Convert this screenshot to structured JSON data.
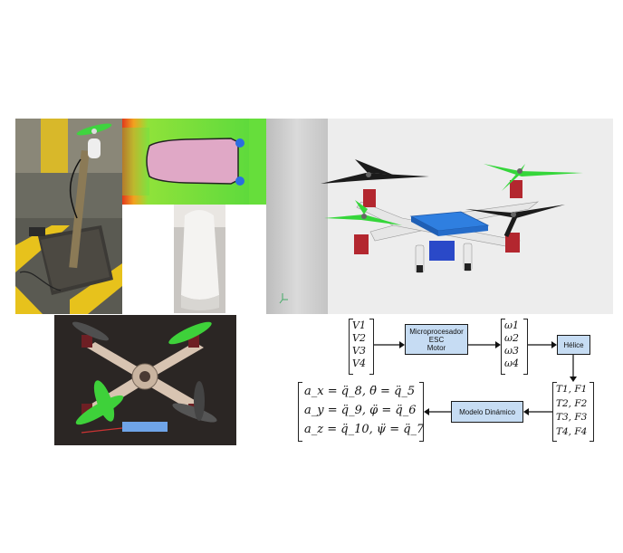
{
  "figure": {
    "panels": [
      {
        "id": "test-stand-photo",
        "description": "photo of motor on test stand"
      },
      {
        "id": "cfd-simulation",
        "description": "airfoil flow simulation"
      },
      {
        "id": "white-housing-photo",
        "description": "white motor housing"
      },
      {
        "id": "quadcopter-render",
        "description": "3D render of quadcopter"
      },
      {
        "id": "quadcopter-photo",
        "description": "assembled quadcopter"
      }
    ],
    "diagram": {
      "input_vector": [
        "V1",
        "V2",
        "V3",
        "V4"
      ],
      "block_micro": [
        "Microprocesador",
        "ESC",
        "Motor"
      ],
      "omega_vector": [
        "ω1",
        "ω2",
        "ω3",
        "ω4"
      ],
      "block_helice": "Hélice",
      "tf_vector": [
        "T1, F1",
        "T2, F2",
        "T3, F3",
        "T4, F4"
      ],
      "block_modelo": "Modelo Dinámico",
      "equations": [
        "a_x = q̈_8,   θ̈ = q̈_5",
        "a_y = q̈_9,   φ̈ = q̈_6",
        "a_z = q̈_10,   ψ̈ = q̈_7"
      ]
    },
    "colors": {
      "block_fill": "#c6dcf3",
      "propeller_green": "#35d63a",
      "propeller_black": "#1b1b1b",
      "body_blue": "#2f7fe0",
      "motor_red": "#b3272f"
    }
  }
}
